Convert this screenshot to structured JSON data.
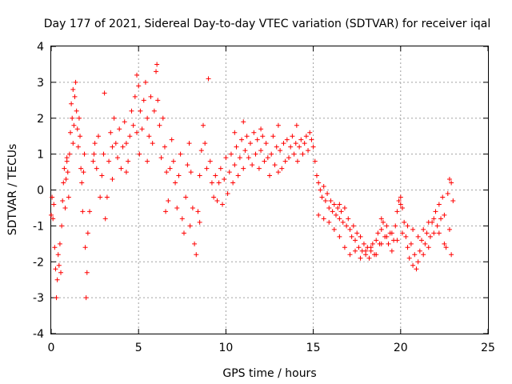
{
  "chart_data": {
    "type": "scatter",
    "title": "Day 177 of 2021, Sidereal Day-to-day VTEC variation (SDTVAR) for receiver iqal",
    "xlabel": "GPS time / hours",
    "ylabel": "SDTVAR / TECUs",
    "xlim": [
      0,
      25
    ],
    "ylim": [
      -4,
      4
    ],
    "xticks": [
      "0",
      "5",
      "10",
      "15",
      "20",
      "25"
    ],
    "yticks": [
      "-4",
      "-3",
      "-2",
      "-1",
      "0",
      "1",
      "2",
      "3",
      "4"
    ],
    "grid": true,
    "marker": "+",
    "color": "#ff0000",
    "series": [
      {
        "name": "SDTVAR",
        "points": [
          [
            0.0,
            -0.7
          ],
          [
            0.05,
            -0.2
          ],
          [
            0.1,
            -0.8
          ],
          [
            0.15,
            -0.4
          ],
          [
            0.2,
            -1.6
          ],
          [
            0.25,
            -2.2
          ],
          [
            0.3,
            -3.0
          ],
          [
            0.35,
            -2.5
          ],
          [
            0.4,
            -1.8
          ],
          [
            0.45,
            -2.1
          ],
          [
            0.5,
            -1.5
          ],
          [
            0.55,
            -2.3
          ],
          [
            0.6,
            -1.0
          ],
          [
            0.65,
            -0.3
          ],
          [
            0.7,
            0.2
          ],
          [
            0.75,
            0.6
          ],
          [
            0.8,
            -0.5
          ],
          [
            0.85,
            0.3
          ],
          [
            0.9,
            0.8
          ],
          [
            0.95,
            0.5
          ],
          [
            1.0,
            -0.2
          ],
          [
            1.05,
            1.0
          ],
          [
            1.1,
            1.6
          ],
          [
            1.15,
            2.4
          ],
          [
            1.2,
            2.0
          ],
          [
            1.25,
            1.3
          ],
          [
            1.3,
            1.8
          ],
          [
            1.35,
            2.6
          ],
          [
            1.4,
            3.0
          ],
          [
            1.45,
            2.2
          ],
          [
            1.5,
            1.7
          ],
          [
            1.55,
            1.2
          ],
          [
            1.6,
            2.0
          ],
          [
            1.65,
            1.5
          ],
          [
            1.7,
            0.6
          ],
          [
            1.75,
            0.2
          ],
          [
            1.8,
            -0.6
          ],
          [
            1.85,
            0.5
          ],
          [
            1.9,
            1.0
          ],
          [
            1.95,
            -1.6
          ],
          [
            2.0,
            -3.0
          ],
          [
            2.05,
            -2.3
          ],
          [
            2.1,
            -1.2
          ],
          [
            2.2,
            -0.6
          ],
          [
            2.4,
            0.8
          ],
          [
            2.5,
            1.3
          ],
          [
            2.6,
            0.6
          ],
          [
            2.7,
            1.5
          ],
          [
            2.8,
            -0.2
          ],
          [
            2.9,
            0.4
          ],
          [
            3.0,
            1.0
          ],
          [
            3.1,
            -0.8
          ],
          [
            3.2,
            -0.2
          ],
          [
            3.3,
            0.8
          ],
          [
            3.4,
            1.6
          ],
          [
            3.5,
            1.2
          ],
          [
            3.6,
            2.0
          ],
          [
            3.7,
            1.3
          ],
          [
            3.8,
            0.9
          ],
          [
            3.9,
            1.7
          ],
          [
            4.0,
            0.6
          ],
          [
            4.1,
            1.2
          ],
          [
            4.2,
            1.9
          ],
          [
            4.3,
            1.3
          ],
          [
            4.4,
            0.8
          ],
          [
            4.5,
            1.5
          ],
          [
            4.6,
            2.2
          ],
          [
            4.7,
            1.8
          ],
          [
            4.8,
            2.6
          ],
          [
            4.9,
            1.6
          ],
          [
            5.0,
            2.9
          ],
          [
            5.1,
            2.2
          ],
          [
            5.2,
            1.7
          ],
          [
            5.3,
            2.5
          ],
          [
            5.4,
            3.0
          ],
          [
            5.5,
            2.0
          ],
          [
            5.6,
            1.5
          ],
          [
            5.7,
            2.6
          ],
          [
            5.8,
            1.3
          ],
          [
            5.9,
            2.2
          ],
          [
            6.0,
            3.3
          ],
          [
            6.1,
            2.5
          ],
          [
            6.2,
            1.8
          ],
          [
            6.3,
            0.9
          ],
          [
            6.4,
            2.0
          ],
          [
            6.5,
            1.2
          ],
          [
            6.6,
            0.5
          ],
          [
            6.7,
            -0.3
          ],
          [
            6.8,
            0.6
          ],
          [
            6.9,
            1.4
          ],
          [
            7.0,
            0.8
          ],
          [
            7.1,
            0.2
          ],
          [
            7.2,
            -0.5
          ],
          [
            7.3,
            0.4
          ],
          [
            7.4,
            1.0
          ],
          [
            7.5,
            -0.8
          ],
          [
            7.6,
            -1.2
          ],
          [
            7.7,
            -0.2
          ],
          [
            7.8,
            0.7
          ],
          [
            7.9,
            1.3
          ],
          [
            8.0,
            0.5
          ],
          [
            8.1,
            -0.5
          ],
          [
            8.2,
            -1.5
          ],
          [
            8.3,
            -1.8
          ],
          [
            8.4,
            -0.6
          ],
          [
            8.5,
            0.4
          ],
          [
            8.6,
            1.1
          ],
          [
            8.7,
            1.8
          ],
          [
            8.8,
            1.3
          ],
          [
            8.9,
            0.6
          ],
          [
            9.0,
            3.1
          ],
          [
            9.1,
            0.8
          ],
          [
            9.2,
            0.2
          ],
          [
            9.3,
            -0.2
          ],
          [
            9.4,
            0.4
          ],
          [
            9.5,
            -0.3
          ],
          [
            9.6,
            0.2
          ],
          [
            9.7,
            0.6
          ],
          [
            9.8,
            -0.4
          ],
          [
            9.9,
            0.3
          ],
          [
            10.0,
            0.9
          ],
          [
            10.1,
            -0.1
          ],
          [
            10.2,
            0.5
          ],
          [
            10.3,
            1.0
          ],
          [
            10.4,
            0.2
          ],
          [
            10.5,
            0.7
          ],
          [
            10.6,
            1.2
          ],
          [
            10.7,
            0.4
          ],
          [
            10.8,
            0.9
          ],
          [
            10.9,
            1.4
          ],
          [
            11.0,
            0.6
          ],
          [
            11.1,
            1.1
          ],
          [
            11.2,
            1.5
          ],
          [
            11.3,
            0.9
          ],
          [
            11.4,
            1.3
          ],
          [
            11.5,
            0.7
          ],
          [
            11.6,
            1.6
          ],
          [
            11.7,
            1.0
          ],
          [
            11.8,
            1.4
          ],
          [
            11.9,
            0.6
          ],
          [
            12.0,
            1.1
          ],
          [
            12.1,
            1.5
          ],
          [
            12.2,
            0.8
          ],
          [
            12.3,
            1.3
          ],
          [
            12.4,
            0.9
          ],
          [
            12.5,
            0.4
          ],
          [
            12.6,
            1.0
          ],
          [
            12.7,
            1.5
          ],
          [
            12.8,
            0.7
          ],
          [
            12.9,
            1.2
          ],
          [
            13.0,
            0.5
          ],
          [
            13.1,
            1.1
          ],
          [
            13.2,
            0.6
          ],
          [
            13.3,
            1.3
          ],
          [
            13.4,
            0.8
          ],
          [
            13.5,
            1.4
          ],
          [
            13.6,
            0.9
          ],
          [
            13.7,
            1.2
          ],
          [
            13.8,
            1.5
          ],
          [
            13.9,
            1.0
          ],
          [
            14.0,
            1.3
          ],
          [
            14.1,
            0.8
          ],
          [
            14.2,
            1.2
          ],
          [
            14.3,
            1.4
          ],
          [
            14.4,
            1.0
          ],
          [
            14.5,
            1.3
          ],
          [
            14.6,
            1.5
          ],
          [
            14.7,
            1.1
          ],
          [
            14.8,
            1.6
          ],
          [
            14.9,
            1.4
          ],
          [
            15.0,
            1.2
          ],
          [
            15.1,
            0.8
          ],
          [
            15.2,
            0.4
          ],
          [
            15.3,
            0.2
          ],
          [
            15.4,
            0.0
          ],
          [
            15.5,
            -0.2
          ],
          [
            15.6,
            0.1
          ],
          [
            15.7,
            -0.3
          ],
          [
            15.8,
            -0.1
          ],
          [
            15.9,
            -0.5
          ],
          [
            16.0,
            -0.3
          ],
          [
            16.1,
            -0.6
          ],
          [
            16.2,
            -0.4
          ],
          [
            16.3,
            -0.7
          ],
          [
            16.4,
            -0.5
          ],
          [
            16.5,
            -0.8
          ],
          [
            16.6,
            -0.6
          ],
          [
            16.7,
            -0.9
          ],
          [
            16.8,
            -0.5
          ],
          [
            16.9,
            -1.0
          ],
          [
            17.0,
            -0.8
          ],
          [
            17.1,
            -1.1
          ],
          [
            17.2,
            -1.3
          ],
          [
            17.3,
            -1.0
          ],
          [
            17.4,
            -1.4
          ],
          [
            17.5,
            -1.2
          ],
          [
            17.6,
            -1.6
          ],
          [
            17.7,
            -1.3
          ],
          [
            17.8,
            -1.7
          ],
          [
            17.9,
            -1.5
          ],
          [
            18.0,
            -1.8
          ],
          [
            18.1,
            -1.6
          ],
          [
            18.2,
            -1.9
          ],
          [
            18.3,
            -1.7
          ],
          [
            18.4,
            -1.5
          ],
          [
            18.5,
            -1.8
          ],
          [
            18.6,
            -1.4
          ],
          [
            18.7,
            -1.2
          ],
          [
            18.8,
            -1.5
          ],
          [
            18.9,
            -1.1
          ],
          [
            19.0,
            -0.9
          ],
          [
            19.1,
            -1.3
          ],
          [
            19.2,
            -1.0
          ],
          [
            19.3,
            -1.5
          ],
          [
            19.4,
            -1.2
          ],
          [
            19.5,
            -1.7
          ],
          [
            19.6,
            -1.4
          ],
          [
            19.7,
            -1.0
          ],
          [
            19.8,
            -0.6
          ],
          [
            19.9,
            -0.3
          ],
          [
            20.0,
            -0.2
          ],
          [
            20.1,
            -0.5
          ],
          [
            20.2,
            -0.9
          ],
          [
            20.3,
            -1.3
          ],
          [
            20.4,
            -1.6
          ],
          [
            20.5,
            -1.9
          ],
          [
            20.6,
            -1.5
          ],
          [
            20.7,
            -2.1
          ],
          [
            20.8,
            -1.8
          ],
          [
            20.9,
            -2.2
          ],
          [
            21.0,
            -2.0
          ],
          [
            21.1,
            -1.7
          ],
          [
            21.2,
            -1.4
          ],
          [
            21.3,
            -1.8
          ],
          [
            21.4,
            -1.5
          ],
          [
            21.5,
            -1.2
          ],
          [
            21.6,
            -1.6
          ],
          [
            21.7,
            -1.3
          ],
          [
            21.8,
            -0.9
          ],
          [
            21.9,
            -1.2
          ],
          [
            22.0,
            -0.6
          ],
          [
            22.1,
            -1.0
          ],
          [
            22.2,
            -0.4
          ],
          [
            22.3,
            -0.8
          ],
          [
            22.4,
            -0.2
          ],
          [
            22.5,
            -1.5
          ],
          [
            22.6,
            -1.6
          ],
          [
            22.7,
            -0.1
          ],
          [
            22.8,
            0.3
          ],
          [
            22.9,
            -1.8
          ],
          [
            23.0,
            -0.3
          ],
          [
            15.3,
            -0.7
          ],
          [
            15.6,
            -0.8
          ],
          [
            15.9,
            -0.9
          ],
          [
            16.2,
            -1.1
          ],
          [
            16.5,
            -1.3
          ],
          [
            16.8,
            -1.6
          ],
          [
            17.1,
            -1.8
          ],
          [
            17.4,
            -1.7
          ],
          [
            17.7,
            -1.9
          ],
          [
            18.0,
            -1.7
          ],
          [
            18.3,
            -1.6
          ],
          [
            18.6,
            -1.8
          ],
          [
            18.9,
            -1.5
          ],
          [
            19.2,
            -1.3
          ],
          [
            19.5,
            -1.2
          ],
          [
            19.8,
            -1.4
          ],
          [
            20.1,
            -1.2
          ],
          [
            20.4,
            -1.0
          ],
          [
            20.7,
            -1.1
          ],
          [
            21.0,
            -1.3
          ],
          [
            21.3,
            -1.1
          ],
          [
            21.6,
            -0.9
          ],
          [
            21.9,
            -0.8
          ],
          [
            22.2,
            -1.2
          ],
          [
            22.5,
            -0.7
          ],
          [
            22.8,
            -1.1
          ],
          [
            0.9,
            0.9
          ],
          [
            1.25,
            2.8
          ],
          [
            2.45,
            1.0
          ],
          [
            3.5,
            0.3
          ],
          [
            4.3,
            0.5
          ],
          [
            5.05,
            1.0
          ],
          [
            5.5,
            0.8
          ],
          [
            6.55,
            -0.6
          ],
          [
            7.95,
            -1.0
          ],
          [
            8.5,
            -0.9
          ],
          [
            3.05,
            2.7
          ],
          [
            4.9,
            3.2
          ],
          [
            6.05,
            3.5
          ],
          [
            12.0,
            1.7
          ],
          [
            13.0,
            1.8
          ],
          [
            14.05,
            1.8
          ],
          [
            11.0,
            1.9
          ],
          [
            10.5,
            1.6
          ],
          [
            16.5,
            -0.4
          ],
          [
            18.9,
            -0.8
          ],
          [
            20.0,
            -0.4
          ],
          [
            22.9,
            0.2
          ]
        ]
      }
    ]
  }
}
